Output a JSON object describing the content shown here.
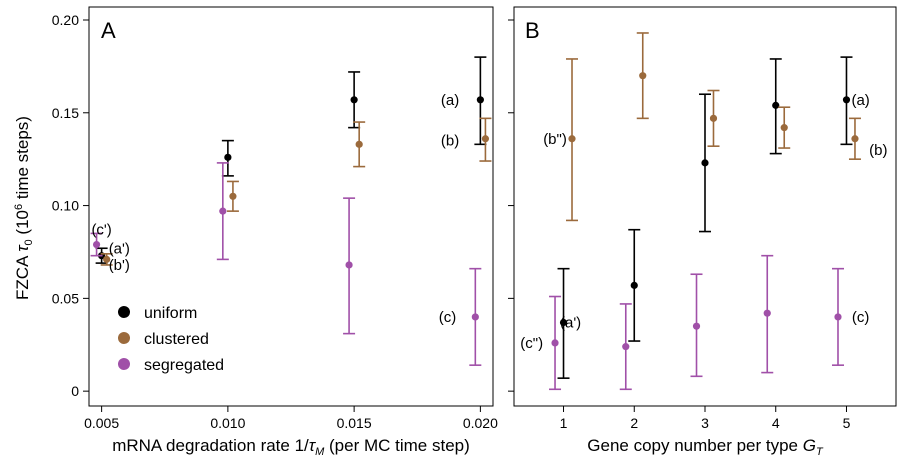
{
  "figure": {
    "ylabel": "FZCA τ0 (10⁶ time steps)"
  },
  "colors": {
    "uniform": "#000000",
    "clustered": "#9b6a3c",
    "segregated": "#a050a8"
  },
  "legend": [
    {
      "name": "uniform",
      "color": "#000000"
    },
    {
      "name": "clustered",
      "color": "#9b6a3c"
    },
    {
      "name": "segregated",
      "color": "#a050a8"
    }
  ],
  "chart_data": [
    {
      "type": "scatter",
      "panel": "A",
      "xlabel": "mRNA degradation rate 1/τM (per MC time step)",
      "ylabel": "FZCA τ0 (10⁶ time steps)",
      "xlim": [
        0.0045,
        0.0205
      ],
      "ylim": [
        -0.008,
        0.207
      ],
      "xticks": [
        0.005,
        0.01,
        0.015,
        0.02
      ],
      "xtick_labels": [
        "0.005",
        "0.010",
        "0.015",
        "0.020"
      ],
      "yticks": [
        0,
        0.05,
        0.1,
        0.15,
        0.2
      ],
      "ytick_labels": [
        "0",
        "0.05",
        "0.10",
        "0.15",
        "0.20"
      ],
      "legend_position": "bottom-left",
      "series": [
        {
          "name": "uniform",
          "points": [
            {
              "x": 0.005,
              "y": 0.073,
              "lo": 0.069,
              "hi": 0.077
            },
            {
              "x": 0.01,
              "y": 0.126,
              "lo": 0.116,
              "hi": 0.135
            },
            {
              "x": 0.015,
              "y": 0.157,
              "lo": 0.142,
              "hi": 0.172
            },
            {
              "x": 0.02,
              "y": 0.157,
              "lo": 0.133,
              "hi": 0.18
            }
          ]
        },
        {
          "name": "clustered",
          "points": [
            {
              "x": 0.0052,
              "y": 0.071,
              "lo": 0.068,
              "hi": 0.074
            },
            {
              "x": 0.0102,
              "y": 0.105,
              "lo": 0.097,
              "hi": 0.113
            },
            {
              "x": 0.0152,
              "y": 0.133,
              "lo": 0.121,
              "hi": 0.145
            },
            {
              "x": 0.0202,
              "y": 0.136,
              "lo": 0.124,
              "hi": 0.147
            }
          ]
        },
        {
          "name": "segregated",
          "points": [
            {
              "x": 0.0048,
              "y": 0.079,
              "lo": 0.073,
              "hi": 0.085
            },
            {
              "x": 0.0098,
              "y": 0.097,
              "lo": 0.071,
              "hi": 0.123
            },
            {
              "x": 0.0148,
              "y": 0.068,
              "lo": 0.031,
              "hi": 0.104
            },
            {
              "x": 0.0198,
              "y": 0.04,
              "lo": 0.014,
              "hi": 0.066
            }
          ]
        }
      ],
      "annotations": [
        {
          "text": "(c')",
          "x": 0.005,
          "y": 0.087
        },
        {
          "text": "(a')",
          "x": 0.0057,
          "y": 0.077
        },
        {
          "text": "(b')",
          "x": 0.0057,
          "y": 0.068
        },
        {
          "text": "(a)",
          "x": 0.0188,
          "y": 0.157
        },
        {
          "text": "(b)",
          "x": 0.0188,
          "y": 0.135
        },
        {
          "text": "(c)",
          "x": 0.0187,
          "y": 0.04
        }
      ]
    },
    {
      "type": "scatter",
      "panel": "B",
      "xlabel": "Gene copy number per type GT",
      "ylim": [
        -0.008,
        0.207
      ],
      "xlim": [
        0.3,
        5.7
      ],
      "xticks": [
        1,
        2,
        3,
        4,
        5
      ],
      "xtick_labels": [
        "1",
        "2",
        "3",
        "4",
        "5"
      ],
      "series": [
        {
          "name": "uniform",
          "points": [
            {
              "x": 1.0,
              "y": 0.037,
              "lo": 0.007,
              "hi": 0.066
            },
            {
              "x": 2.0,
              "y": 0.057,
              "lo": 0.027,
              "hi": 0.087
            },
            {
              "x": 3.0,
              "y": 0.123,
              "lo": 0.086,
              "hi": 0.16
            },
            {
              "x": 4.0,
              "y": 0.154,
              "lo": 0.128,
              "hi": 0.179
            },
            {
              "x": 5.0,
              "y": 0.157,
              "lo": 0.133,
              "hi": 0.18
            }
          ]
        },
        {
          "name": "clustered",
          "points": [
            {
              "x": 1.12,
              "y": 0.136,
              "lo": 0.092,
              "hi": 0.179
            },
            {
              "x": 2.12,
              "y": 0.17,
              "lo": 0.147,
              "hi": 0.193
            },
            {
              "x": 3.12,
              "y": 0.147,
              "lo": 0.132,
              "hi": 0.162
            },
            {
              "x": 4.12,
              "y": 0.142,
              "lo": 0.131,
              "hi": 0.153
            },
            {
              "x": 5.12,
              "y": 0.136,
              "lo": 0.125,
              "hi": 0.147
            }
          ]
        },
        {
          "name": "segregated",
          "points": [
            {
              "x": 0.88,
              "y": 0.026,
              "lo": 0.001,
              "hi": 0.051
            },
            {
              "x": 1.88,
              "y": 0.024,
              "lo": 0.001,
              "hi": 0.047
            },
            {
              "x": 2.88,
              "y": 0.035,
              "lo": 0.008,
              "hi": 0.063
            },
            {
              "x": 3.88,
              "y": 0.042,
              "lo": 0.01,
              "hi": 0.073
            },
            {
              "x": 4.88,
              "y": 0.04,
              "lo": 0.014,
              "hi": 0.066
            }
          ]
        }
      ],
      "annotations": [
        {
          "text": "(b\")",
          "x": 0.88,
          "y": 0.136
        },
        {
          "text": "(a')",
          "x": 1.1,
          "y": 0.037
        },
        {
          "text": "(c\")",
          "x": 0.55,
          "y": 0.026
        },
        {
          "text": "(a)",
          "x": 5.2,
          "y": 0.157
        },
        {
          "text": "(b)",
          "x": 5.45,
          "y": 0.13
        },
        {
          "text": "(c)",
          "x": 5.2,
          "y": 0.04
        }
      ]
    }
  ]
}
